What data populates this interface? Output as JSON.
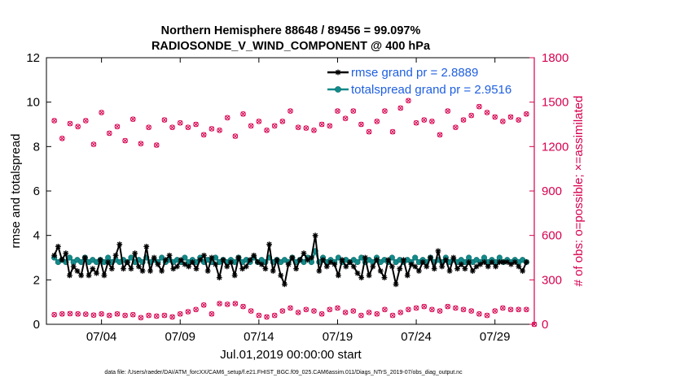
{
  "chart_data": {
    "type": "line",
    "title_line1": "Northern Hemisphere 88648 / 89456 = 99.097%",
    "title_line2": "RADIOSONDE_V_WIND_COMPONENT @ 400 hPa",
    "ylabel": "rmse and totalspread",
    "ylabel_right": "# of obs: o=possible; ×=assimilated",
    "xlabel": "Jul.01,2019 00:00:00 start",
    "footer": "data file: /Users/raeder/DAI/ATM_forcXX/CAM6_setup/f.e21.FHIST_BGC.f09_025.CAM6assim.011/Diags_NTrS_2019-07/obs_diag_output.nc",
    "xlim": [
      0.5,
      31.5
    ],
    "ylim": [
      0,
      12
    ],
    "ylim_right": [
      0,
      1800
    ],
    "xticks": [
      4,
      9,
      14,
      19,
      24,
      29
    ],
    "xtick_labels": [
      "07/04",
      "07/09",
      "07/14",
      "07/19",
      "07/24",
      "07/29"
    ],
    "yticks": [
      0,
      2,
      4,
      6,
      8,
      10,
      12
    ],
    "ytick_labels": [
      "0",
      "2",
      "4",
      "6",
      "8",
      "10",
      "12"
    ],
    "yticks_right": [
      0,
      300,
      600,
      900,
      1200,
      1500,
      1800
    ],
    "ytick_labels_right": [
      "0",
      "300",
      "600",
      "900",
      "1200",
      "1500",
      "1800"
    ],
    "colors": {
      "rmse": "#000000",
      "spread": "#138a8a",
      "obs": "#d6004f",
      "axis": "#000000"
    },
    "series": [
      {
        "name": "rmse grand pr = 2.8889",
        "color": "#000000",
        "values": [
          3.1,
          3.5,
          2.9,
          3.2,
          2.2,
          2.6,
          2.4,
          2.2,
          3.0,
          2.2,
          2.5,
          2.3,
          2.9,
          2.2,
          2.8,
          2.5,
          3.1,
          3.6,
          2.5,
          2.8,
          2.5,
          3.2,
          2.6,
          2.4,
          3.5,
          2.4,
          3.0,
          2.7,
          2.4,
          2.9,
          3.1,
          2.5,
          2.6,
          2.9,
          2.7,
          2.6,
          2.8,
          2.5,
          2.9,
          3.1,
          2.4,
          3.0,
          2.7,
          2.1,
          2.9,
          2.6,
          2.8,
          2.2,
          3.0,
          2.5,
          2.6,
          2.9,
          3.1,
          2.8,
          2.7,
          2.5,
          3.6,
          2.4,
          2.9,
          2.2,
          1.8,
          2.7,
          3.0,
          2.5,
          2.9,
          3.2,
          2.9,
          3.0,
          4.0,
          2.4,
          2.9,
          2.6,
          2.8,
          2.7,
          2.2,
          2.9,
          2.6,
          2.8,
          2.6,
          2.3,
          2.1,
          3.0,
          2.2,
          2.6,
          2.9,
          2.4,
          2.1,
          2.9,
          2.6,
          1.8,
          2.5,
          2.9,
          2.2,
          2.7,
          2.6,
          2.4,
          2.8,
          2.6,
          3.0,
          2.5,
          3.3,
          2.6,
          2.9,
          2.4,
          3.0,
          2.5,
          2.7,
          2.5,
          2.8,
          2.4,
          2.6,
          2.7,
          2.8,
          2.6,
          2.8,
          2.6,
          2.8,
          2.8,
          2.8,
          2.7,
          2.8,
          2.6,
          2.4,
          2.8
        ]
      },
      {
        "name": "totalspread grand pr = 2.9516",
        "color": "#138a8a",
        "values": [
          3.0,
          2.8,
          2.9,
          2.8,
          3.0,
          2.8,
          2.9,
          2.8,
          3.0,
          2.8,
          2.9,
          2.8,
          2.9,
          2.8,
          3.0,
          2.8,
          2.9,
          2.8,
          2.9,
          2.8,
          3.0,
          2.8,
          2.9,
          2.8,
          3.0,
          2.8,
          2.9,
          2.8,
          3.0,
          2.8,
          2.9,
          2.8,
          2.9,
          2.8,
          3.0,
          2.8,
          2.9,
          2.8,
          3.0,
          2.8,
          2.9,
          2.8,
          3.0,
          2.8,
          2.9,
          2.8,
          2.9,
          2.8,
          3.0,
          2.8,
          2.9,
          2.8,
          3.0,
          2.8,
          2.9,
          2.8,
          3.0,
          2.8,
          2.9,
          2.8,
          2.9,
          2.8,
          3.0,
          2.8,
          2.9,
          2.8,
          3.0,
          2.8,
          3.3,
          2.8,
          3.0,
          2.8,
          2.9,
          2.8,
          3.0,
          2.8,
          2.9,
          2.8,
          2.9,
          2.8,
          3.0,
          2.8,
          2.9,
          2.8,
          3.0,
          2.8,
          2.9,
          2.8,
          3.0,
          2.8,
          2.9,
          2.8,
          2.9,
          2.8,
          3.0,
          2.8,
          2.9,
          2.8,
          3.0,
          2.8,
          2.9,
          2.8,
          3.0,
          2.8,
          2.9,
          2.8,
          2.9,
          2.8,
          3.0,
          2.8,
          2.9,
          2.8,
          3.0,
          2.8,
          2.9,
          2.8,
          3.0,
          2.8,
          2.9,
          2.8,
          2.9,
          2.8,
          2.9,
          2.8
        ]
      },
      {
        "name": "obs possible (upper)",
        "color": "#d6004f",
        "x": [
          1,
          1.5,
          2,
          2.5,
          3,
          3.5,
          4,
          4.5,
          5,
          5.5,
          6,
          6.5,
          7,
          7.5,
          8,
          8.5,
          9,
          9.5,
          10,
          10.5,
          11,
          11.5,
          12,
          12.5,
          13,
          13.5,
          14,
          14.5,
          15,
          15.5,
          16,
          16.5,
          17,
          17.5,
          18,
          18.5,
          19,
          19.5,
          20,
          20.5,
          21,
          21.5,
          22,
          22.5,
          23,
          23.5,
          24,
          24.5,
          25,
          25.5,
          26,
          26.5,
          27,
          27.5,
          28,
          28.5,
          29,
          29.5,
          30,
          30.5,
          31
        ],
        "values": [
          1375,
          1255,
          1355,
          1335,
          1375,
          1215,
          1430,
          1290,
          1335,
          1240,
          1385,
          1220,
          1330,
          1210,
          1380,
          1330,
          1360,
          1330,
          1350,
          1280,
          1320,
          1310,
          1395,
          1270,
          1420,
          1340,
          1370,
          1310,
          1340,
          1370,
          1440,
          1330,
          1325,
          1310,
          1350,
          1340,
          1440,
          1390,
          1440,
          1350,
          1300,
          1370,
          1440,
          1300,
          1460,
          1510,
          1360,
          1380,
          1370,
          1280,
          1440,
          1330,
          1380,
          1410,
          1470,
          1430,
          1400,
          1370,
          1400,
          1380,
          1420
        ]
      },
      {
        "name": "obs possible (lower)",
        "color": "#d6004f",
        "x": [
          1,
          1.5,
          2,
          2.5,
          3,
          3.5,
          4,
          4.5,
          5,
          5.5,
          6,
          6.5,
          7,
          7.5,
          8,
          8.5,
          9,
          9.5,
          10,
          10.5,
          11,
          11.5,
          12,
          12.5,
          13,
          13.5,
          14,
          14.5,
          15,
          15.5,
          16,
          16.5,
          17,
          17.5,
          18,
          18.5,
          19,
          19.5,
          20,
          20.5,
          21,
          21.5,
          22,
          22.5,
          23,
          23.5,
          24,
          24.5,
          25,
          25.5,
          26,
          26.5,
          27,
          27.5,
          28,
          28.5,
          29,
          29.5,
          30,
          30.5,
          31
        ],
        "values": [
          65,
          70,
          72,
          70,
          68,
          62,
          70,
          60,
          70,
          60,
          65,
          45,
          60,
          55,
          60,
          50,
          70,
          85,
          100,
          130,
          70,
          140,
          135,
          140,
          120,
          90,
          60,
          50,
          60,
          90,
          110,
          80,
          100,
          90,
          70,
          100,
          110,
          80,
          90,
          60,
          80,
          70,
          100,
          60,
          80,
          100,
          110,
          120,
          100,
          90,
          120,
          110,
          100,
          90,
          70,
          60,
          90,
          110,
          100,
          100,
          100
        ]
      }
    ]
  }
}
